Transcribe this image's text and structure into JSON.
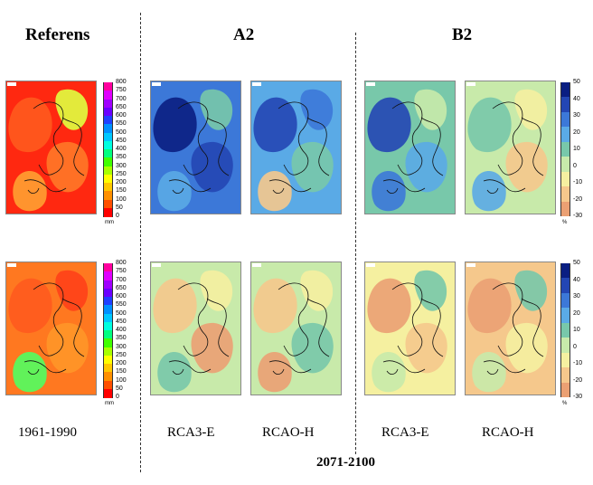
{
  "headers": {
    "referens": "Referens",
    "a2": "A2",
    "b2": "B2"
  },
  "labels": {
    "ref_period": "1961-1990",
    "rca3_e_a2": "RCA3-E",
    "rcao_h_a2": "RCAO-H",
    "rca3_e_b2": "RCA3-E",
    "rcao_h_b2": "RCAO-H",
    "future_period": "2071-2100"
  },
  "colorbars": {
    "absolute": {
      "ticks": [
        "800",
        "750",
        "700",
        "650",
        "600",
        "550",
        "500",
        "450",
        "400",
        "350",
        "300",
        "250",
        "200",
        "150",
        "100",
        "50",
        "0"
      ],
      "unit": "mm",
      "colors": [
        "#ff00a0",
        "#e000ff",
        "#a000ff",
        "#6a00ff",
        "#2040ff",
        "#0090ff",
        "#00c8ff",
        "#00ffe0",
        "#00ff80",
        "#40ff00",
        "#a8ff00",
        "#ffff00",
        "#ffc800",
        "#ff9000",
        "#ff5000",
        "#ff0000"
      ]
    },
    "change": {
      "ticks": [
        "50",
        "40",
        "30",
        "20",
        "10",
        "0",
        "-10",
        "-20",
        "-30"
      ],
      "unit": "%",
      "colors": [
        "#0a1e82",
        "#2346b4",
        "#3c78d8",
        "#5aaae6",
        "#78c8aa",
        "#c8eaaa",
        "#f5f0a0",
        "#f5c88c",
        "#eba073"
      ]
    }
  },
  "maps": [
    {
      "id": "ref-top",
      "base": "#ff2810",
      "blobs": [
        "#ff5a1e",
        "#ff7828",
        "#ffa032",
        "#e0ff40"
      ]
    },
    {
      "id": "ref-bottom",
      "base": "#ff7820",
      "blobs": [
        "#ff5a1e",
        "#ff9628",
        "#50ff60",
        "#ff4018"
      ]
    },
    {
      "id": "a2-rca3e-top",
      "base": "#3c78d8",
      "blobs": [
        "#0a1e82",
        "#2346b4",
        "#5aaae6",
        "#78c8aa"
      ]
    },
    {
      "id": "a2-rcaoh-top",
      "base": "#5aaae6",
      "blobs": [
        "#2346b4",
        "#78c8aa",
        "#f5c88c",
        "#3c78d8"
      ]
    },
    {
      "id": "b2-rca3e-top",
      "base": "#78c8aa",
      "blobs": [
        "#2346b4",
        "#5aaae6",
        "#3c78d8",
        "#c8eaaa"
      ]
    },
    {
      "id": "b2-rcaoh-top",
      "base": "#c8eaaa",
      "blobs": [
        "#78c8aa",
        "#f5c88c",
        "#5aaae6",
        "#f5f0a0"
      ]
    },
    {
      "id": "a2-rca3e-bottom",
      "base": "#c8eaaa",
      "blobs": [
        "#f5c88c",
        "#eba073",
        "#78c8aa",
        "#f5f0a0"
      ]
    },
    {
      "id": "a2-rcaoh-bottom",
      "base": "#c8eaaa",
      "blobs": [
        "#f5c88c",
        "#78c8aa",
        "#eba073",
        "#f5f0a0"
      ]
    },
    {
      "id": "b2-rca3e-bottom",
      "base": "#f5f0a0",
      "blobs": [
        "#eba073",
        "#f5c88c",
        "#c8eaaa",
        "#78c8aa"
      ]
    },
    {
      "id": "b2-rcaoh-bottom",
      "base": "#f5c88c",
      "blobs": [
        "#eba073",
        "#f5f0a0",
        "#c8eaaa",
        "#78c8aa"
      ]
    }
  ]
}
